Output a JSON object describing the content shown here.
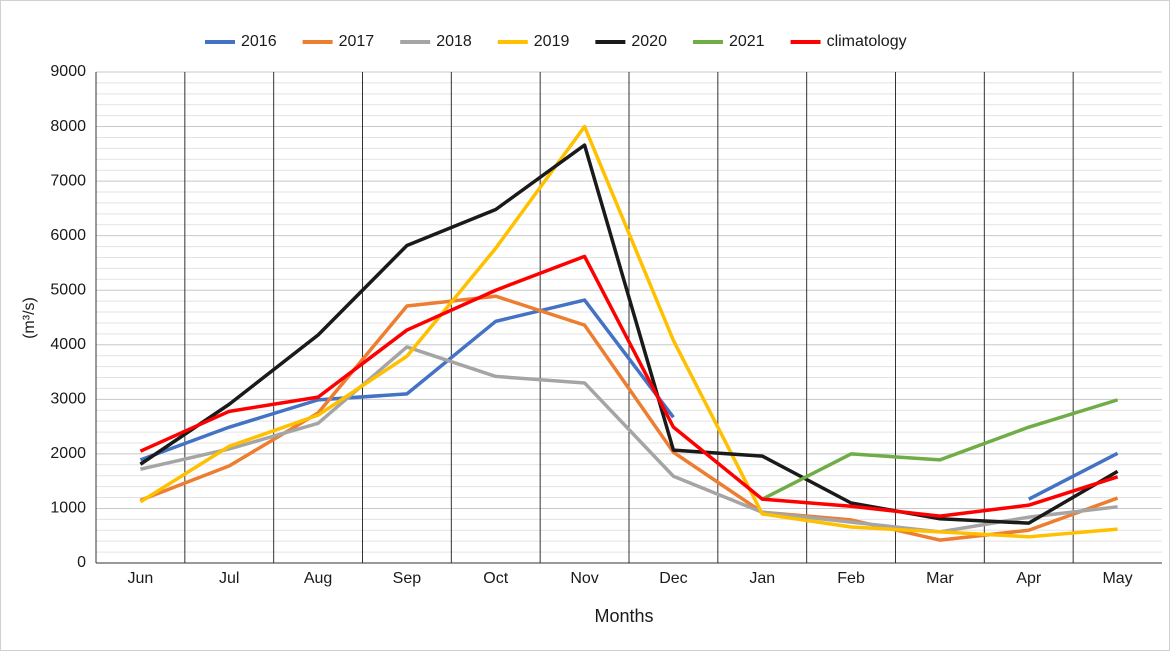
{
  "chart_data": {
    "type": "line",
    "y_label": "(m³/s)",
    "x_label": "Months",
    "categories": [
      "Jun",
      "Jul",
      "Aug",
      "Sep",
      "Oct",
      "Nov",
      "Dec",
      "Jan",
      "Feb",
      "Mar",
      "Apr",
      "May"
    ],
    "series": [
      {
        "name": "2016",
        "color": "#4472c4",
        "values": [
          1890,
          2490,
          2990,
          3100,
          4430,
          4820,
          2670,
          null,
          null,
          null,
          1170,
          2010
        ]
      },
      {
        "name": "2017",
        "color": "#ed7d31",
        "values": [
          1150,
          1780,
          2750,
          4710,
          4890,
          4360,
          2030,
          930,
          790,
          420,
          600,
          1190
        ]
      },
      {
        "name": "2018",
        "color": "#a5a5a5",
        "values": [
          1720,
          2090,
          2560,
          3960,
          3420,
          3300,
          1590,
          930,
          750,
          570,
          840,
          1030
        ]
      },
      {
        "name": "2019",
        "color": "#ffc000",
        "values": [
          1120,
          2140,
          2710,
          3790,
          5770,
          8000,
          4080,
          900,
          660,
          570,
          480,
          620
        ]
      },
      {
        "name": "2020",
        "color": "#1a1a1a",
        "values": [
          1810,
          2910,
          4180,
          5820,
          6480,
          7660,
          2070,
          1960,
          1100,
          810,
          730,
          1680
        ]
      },
      {
        "name": "2021",
        "color": "#70ad47",
        "values": [
          null,
          null,
          null,
          null,
          null,
          null,
          null,
          1170,
          2000,
          1890,
          2490,
          2990
        ]
      },
      {
        "name": "climatology",
        "color": "#ff0000",
        "values": [
          2050,
          2780,
          3040,
          4270,
          5000,
          5620,
          2490,
          1170,
          1040,
          860,
          1060,
          1580
        ]
      }
    ],
    "ylim": [
      0,
      9000
    ],
    "yticks": [
      0,
      1000,
      2000,
      3000,
      4000,
      5000,
      6000,
      7000,
      8000,
      9000
    ],
    "minor_yticks": [
      200,
      400,
      600,
      800,
      1200,
      1400,
      1600,
      1800,
      2200,
      2400,
      2600,
      2800,
      3200,
      3400,
      3600,
      3800,
      4200,
      4400,
      4600,
      4800,
      5200,
      5400,
      5600,
      5800,
      6200,
      6400,
      6600,
      6800,
      7200,
      7400,
      7600,
      7800,
      8200,
      8400,
      8600,
      8800
    ],
    "grid": true,
    "legend": "top"
  }
}
